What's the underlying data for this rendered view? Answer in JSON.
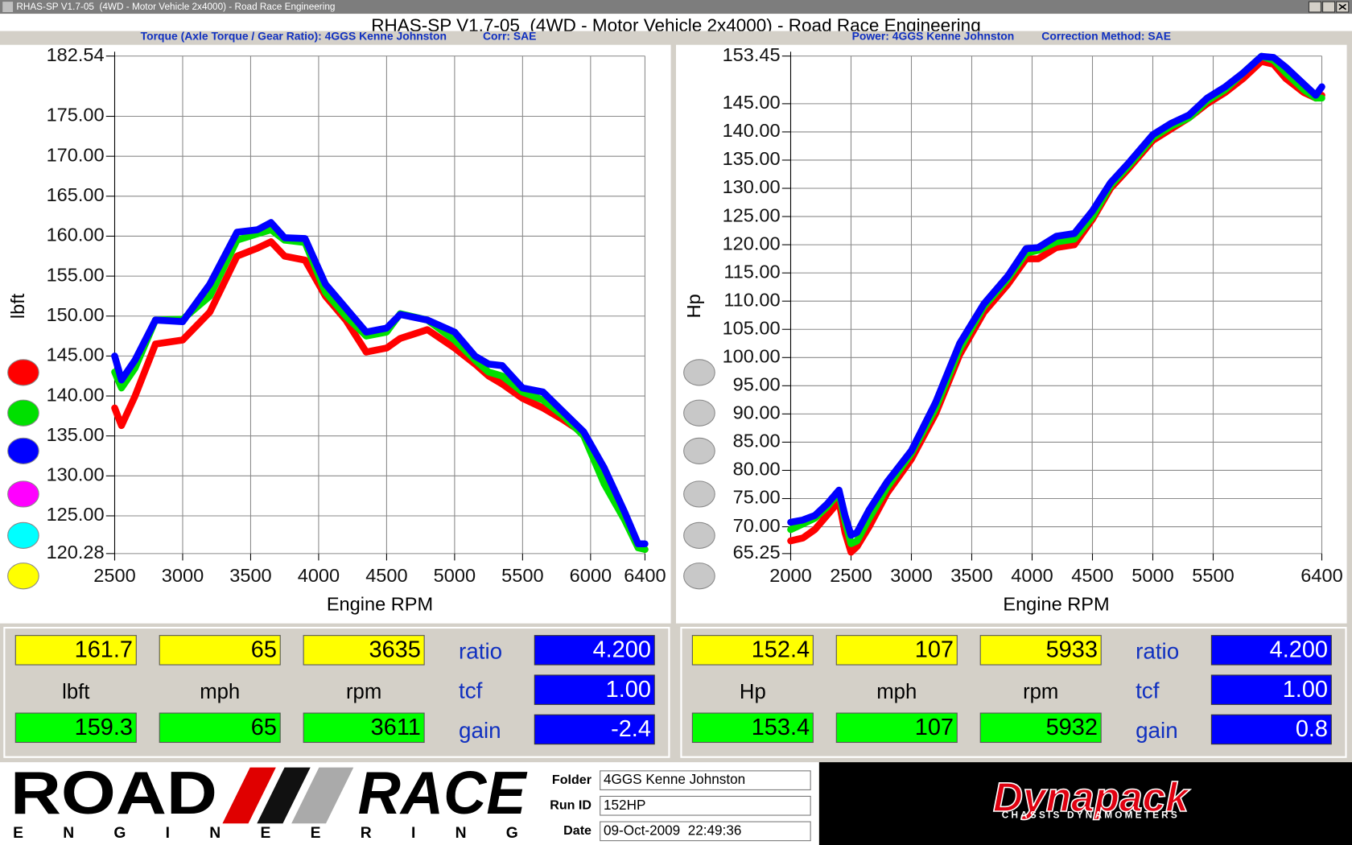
{
  "window": {
    "title": "RHAS-SP V1.7-05  (4WD - Motor Vehicle 2x4000) - Road Race Engineering"
  },
  "chart_data": [
    {
      "type": "line",
      "subtitle": "Torque (Axle Torque / Gear Ratio): 4GGS Kenne Johnston",
      "correction": "Corr: SAE",
      "ylabel": "lbft",
      "xlabel": "Engine RPM",
      "x": [
        2500,
        2550,
        2650,
        2800,
        3000,
        3200,
        3400,
        3550,
        3650,
        3750,
        3900,
        4050,
        4200,
        4350,
        4500,
        4600,
        4800,
        5000,
        5150,
        5250,
        5350,
        5500,
        5650,
        5800,
        5950,
        6100,
        6250,
        6350,
        6400
      ],
      "xlim": [
        2500,
        6400
      ],
      "xticks": [
        2500,
        3000,
        3500,
        4000,
        4500,
        5000,
        5500,
        6000,
        6400
      ],
      "ylim": [
        120.28,
        182.54
      ],
      "yticks": [
        182.54,
        {
          "value": 175,
          "label": "175.00"
        },
        {
          "value": 170,
          "label": "170.00"
        },
        {
          "value": 165,
          "label": "165.00"
        },
        {
          "value": 160,
          "label": "160.00"
        },
        {
          "value": 155,
          "label": "155.00"
        },
        {
          "value": 150,
          "label": "150.00"
        },
        {
          "value": 145,
          "label": "145.00"
        },
        {
          "value": 140,
          "label": "140.00"
        },
        {
          "value": 135,
          "label": "135.00"
        },
        {
          "value": 130,
          "label": "130.00"
        },
        {
          "value": 125,
          "label": "125.00"
        },
        120.28
      ],
      "grid": true,
      "series": [
        {
          "color": "#ff0000",
          "values": [
            138.5,
            136.3,
            140,
            146.5,
            147,
            150.5,
            157.5,
            158.5,
            159.3,
            157.5,
            157,
            152.5,
            149.5,
            145.5,
            146,
            147.2,
            148.3,
            146,
            144,
            142.5,
            141.5,
            139.7,
            138.5,
            137,
            135.3,
            131,
            125,
            121.3,
            120.8
          ]
        },
        {
          "color": "#00e000",
          "values": [
            143,
            141,
            143.5,
            149.5,
            149.6,
            152.5,
            159.5,
            160.3,
            160.8,
            159.5,
            159.2,
            153,
            150,
            147.5,
            148,
            150.3,
            149.5,
            147,
            144.5,
            143,
            142.5,
            140.5,
            139.5,
            137.5,
            135,
            129,
            124.5,
            121,
            120.8
          ]
        },
        {
          "color": "#0000ff",
          "values": [
            145,
            142,
            144.5,
            149.5,
            149.3,
            154,
            160.5,
            160.8,
            161.7,
            159.8,
            159.7,
            154,
            151,
            148,
            148.5,
            150.2,
            149.5,
            148,
            145,
            144,
            143.8,
            141,
            140.5,
            138,
            135.5,
            131,
            125.5,
            121.5,
            121.5
          ]
        }
      ]
    },
    {
      "type": "line",
      "subtitle": "Power: 4GGS Kenne Johnston",
      "correction": "Correction Method: SAE",
      "ylabel": "Hp",
      "xlabel": "Engine RPM",
      "x": [
        2000,
        2100,
        2200,
        2300,
        2400,
        2450,
        2500,
        2550,
        2650,
        2800,
        3000,
        3200,
        3400,
        3600,
        3800,
        3950,
        4050,
        4200,
        4350,
        4500,
        4650,
        4800,
        5000,
        5150,
        5300,
        5450,
        5600,
        5750,
        5900,
        6000,
        6100,
        6250,
        6350,
        6400
      ],
      "xlim": [
        2000,
        6400
      ],
      "xticks": [
        2000,
        2500,
        3000,
        3500,
        4000,
        4500,
        5000,
        5500,
        6400
      ],
      "ylim": [
        65.25,
        153.45
      ],
      "yticks": [
        153.45,
        {
          "value": 145,
          "label": "145.00"
        },
        {
          "value": 140,
          "label": "140.00"
        },
        {
          "value": 135,
          "label": "135.00"
        },
        {
          "value": 130,
          "label": "130.00"
        },
        {
          "value": 125,
          "label": "125.00"
        },
        {
          "value": 120,
          "label": "120.00"
        },
        {
          "value": 115,
          "label": "115.00"
        },
        {
          "value": 110,
          "label": "110.00"
        },
        {
          "value": 105,
          "label": "105.00"
        },
        {
          "value": 100,
          "label": "100.00"
        },
        {
          "value": 95,
          "label": "95.00"
        },
        {
          "value": 90,
          "label": "90.00"
        },
        {
          "value": 85,
          "label": "85.00"
        },
        {
          "value": 80,
          "label": "80.00"
        },
        {
          "value": 75,
          "label": "75.00"
        },
        {
          "value": 70,
          "label": "70.00"
        },
        65.25
      ],
      "grid": true,
      "series": [
        {
          "color": "#ff0000",
          "values": [
            67.5,
            68,
            69.5,
            72,
            74.5,
            69,
            65.5,
            66.5,
            70,
            76,
            82,
            90,
            100.5,
            108,
            113,
            117.5,
            117.5,
            119.5,
            120,
            124.5,
            130,
            133.5,
            138.5,
            140.5,
            142.5,
            145,
            147,
            149.5,
            152.5,
            152,
            149.5,
            147,
            146,
            146.5
          ]
        },
        {
          "color": "#00e000",
          "values": [
            69.5,
            70.5,
            71.5,
            73.5,
            76,
            71,
            67,
            67.5,
            71.5,
            77,
            83,
            91,
            101.5,
            109,
            114,
            118.5,
            119,
            120.5,
            121,
            125,
            130.5,
            134,
            139,
            141,
            142.5,
            145.5,
            147.5,
            150.5,
            153.4,
            152.7,
            150.5,
            147.5,
            146,
            146
          ]
        },
        {
          "color": "#0000ff",
          "values": [
            70.8,
            71.2,
            72,
            74,
            76.5,
            72,
            68.5,
            69,
            73,
            78,
            83.5,
            92,
            102.5,
            109.5,
            114.5,
            119.3,
            119.5,
            121.5,
            122,
            126,
            131,
            134.5,
            139.5,
            141.5,
            143,
            146,
            148,
            150.5,
            153.4,
            153.2,
            151.5,
            148.5,
            146.5,
            148
          ]
        }
      ]
    }
  ],
  "readouts": [
    {
      "top": [
        "161.7",
        "65",
        "3635"
      ],
      "units": [
        "lbft",
        "mph",
        "rpm"
      ],
      "bottom": [
        "159.3",
        "65",
        "3611"
      ],
      "params": [
        {
          "label": "ratio",
          "value": "4.200"
        },
        {
          "label": "tcf",
          "value": "1.00"
        },
        {
          "label": "gain",
          "value": "-2.4"
        }
      ]
    },
    {
      "top": [
        "152.4",
        "107",
        "5933"
      ],
      "units": [
        "Hp",
        "mph",
        "rpm"
      ],
      "bottom": [
        "153.4",
        "107",
        "5932"
      ],
      "params": [
        {
          "label": "ratio",
          "value": "4.200"
        },
        {
          "label": "tcf",
          "value": "1.00"
        },
        {
          "label": "gain",
          "value": "0.8"
        }
      ]
    }
  ],
  "footer": {
    "logo_top": "ROAD",
    "logo_right": "RACE",
    "logo_bottom": "ENGINEERING",
    "fields": [
      {
        "label": "Folder",
        "value": "4GGS Kenne Johnston"
      },
      {
        "label": "Run ID",
        "value": "152HP"
      },
      {
        "label": "Date",
        "value": "09-Oct-2009  22:49:36"
      }
    ],
    "brand": "Dynapack",
    "brand_sub": "CHASSIS DYNAMOMETERS"
  }
}
